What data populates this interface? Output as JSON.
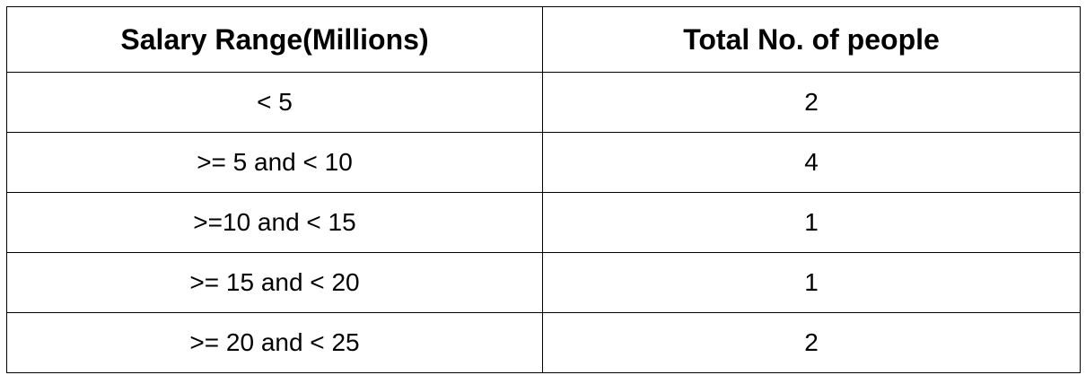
{
  "table": {
    "headers": [
      "Salary Range(Millions)",
      "Total No. of people"
    ],
    "rows": [
      [
        "< 5",
        "2"
      ],
      [
        ">= 5 and < 10",
        "4"
      ],
      [
        ">=10 and < 15",
        "1"
      ],
      [
        ">= 15 and < 20",
        "1"
      ],
      [
        ">= 20 and < 25",
        "2"
      ]
    ]
  }
}
